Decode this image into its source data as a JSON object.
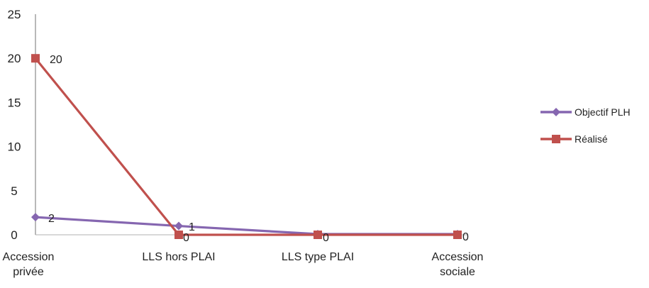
{
  "chart_data": {
    "type": "line",
    "title": "",
    "xlabel": "",
    "ylabel": "",
    "categories": [
      [
        "Accession",
        "privée"
      ],
      [
        "LLS hors PLAI"
      ],
      [
        "LLS type PLAI"
      ],
      [
        "Accession",
        "sociale"
      ]
    ],
    "ylim": [
      0,
      25
    ],
    "yticks": [
      "0",
      "5",
      "10",
      "15",
      "20",
      "25"
    ],
    "grid": false,
    "legend_position": "right",
    "series": [
      {
        "name": "Objectif PLH",
        "values": [
          2,
          1,
          0,
          0
        ],
        "labels": [
          "2",
          "1",
          "",
          ""
        ],
        "color": "#8566B0",
        "marker": "diamond"
      },
      {
        "name": "Réalisé",
        "values": [
          20,
          0,
          0,
          0
        ],
        "labels": [
          "20",
          "0",
          "0",
          "0"
        ],
        "color": "#C0504D",
        "marker": "square"
      }
    ]
  }
}
